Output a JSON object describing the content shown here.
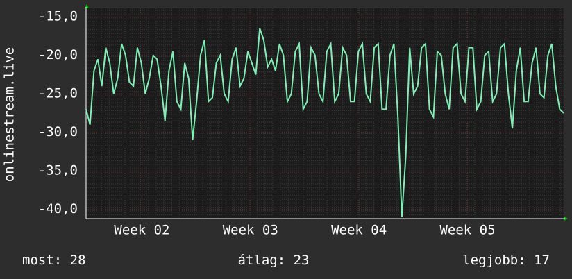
{
  "chart_data": {
    "type": "line",
    "ylabel": "onlinestream.live",
    "series": [
      {
        "color": "#7ff0b4",
        "values": [
          -27,
          -29,
          -22,
          -20.5,
          -24,
          -19,
          -21,
          -25,
          -23,
          -18.5,
          -20,
          -23.5,
          -24,
          -19,
          -21,
          -25,
          -23,
          -20,
          -20.5,
          -24,
          -28.5,
          -22,
          -19.5,
          -26,
          -27,
          -21,
          -23,
          -31,
          -26,
          -20,
          -18,
          -26,
          -25.5,
          -21,
          -20,
          -25,
          -26,
          -20.5,
          -19,
          -24,
          -23,
          -19.5,
          -21,
          -22.5,
          -16.5,
          -18,
          -21.5,
          -20.5,
          -22,
          -18.5,
          -20,
          -26,
          -25,
          -19.5,
          -18.5,
          -27,
          -26,
          -19,
          -20,
          -25,
          -26,
          -19.5,
          -18.5,
          -26,
          -25,
          -19,
          -20,
          -26,
          -26,
          -19.5,
          -18.5,
          -25,
          -26,
          -19,
          -18.5,
          -27,
          -27,
          -20,
          -18.5,
          -28,
          -41,
          -33,
          -19,
          -25,
          -24,
          -19,
          -18.5,
          -27,
          -28,
          -19.5,
          -20,
          -25,
          -27,
          -19,
          -18.5,
          -25,
          -26,
          -19,
          -19,
          -27,
          -26,
          -20,
          -19.5,
          -26,
          -25,
          -19,
          -18.5,
          -25,
          -29.5,
          -22,
          -19,
          -26,
          -26,
          -21,
          -19,
          -25,
          -25.5,
          -20,
          -18.5,
          -24,
          -27,
          -27.5
        ]
      }
    ],
    "xlim": [
      0,
      30.8
    ],
    "xticks": [
      {
        "value": 3.6,
        "label": "Week 02"
      },
      {
        "value": 10.6,
        "label": "Week 03"
      },
      {
        "value": 17.6,
        "label": "Week 04"
      },
      {
        "value": 24.6,
        "label": "Week 05"
      }
    ],
    "ylim": [
      -41.2,
      -13.9
    ],
    "yticks": [
      {
        "value": -40,
        "label": "-40,0"
      },
      {
        "value": -35,
        "label": "-35,0"
      },
      {
        "value": -30,
        "label": "-30,0"
      },
      {
        "value": -25,
        "label": "-25,0"
      },
      {
        "value": -20,
        "label": "-20,0"
      },
      {
        "value": -15,
        "label": "-15,0"
      }
    ],
    "grid": true,
    "stats": [
      {
        "label": "most:",
        "value": 28
      },
      {
        "label": "átlag:",
        "value": 23
      },
      {
        "label": "legjobb:",
        "value": 17
      }
    ]
  }
}
